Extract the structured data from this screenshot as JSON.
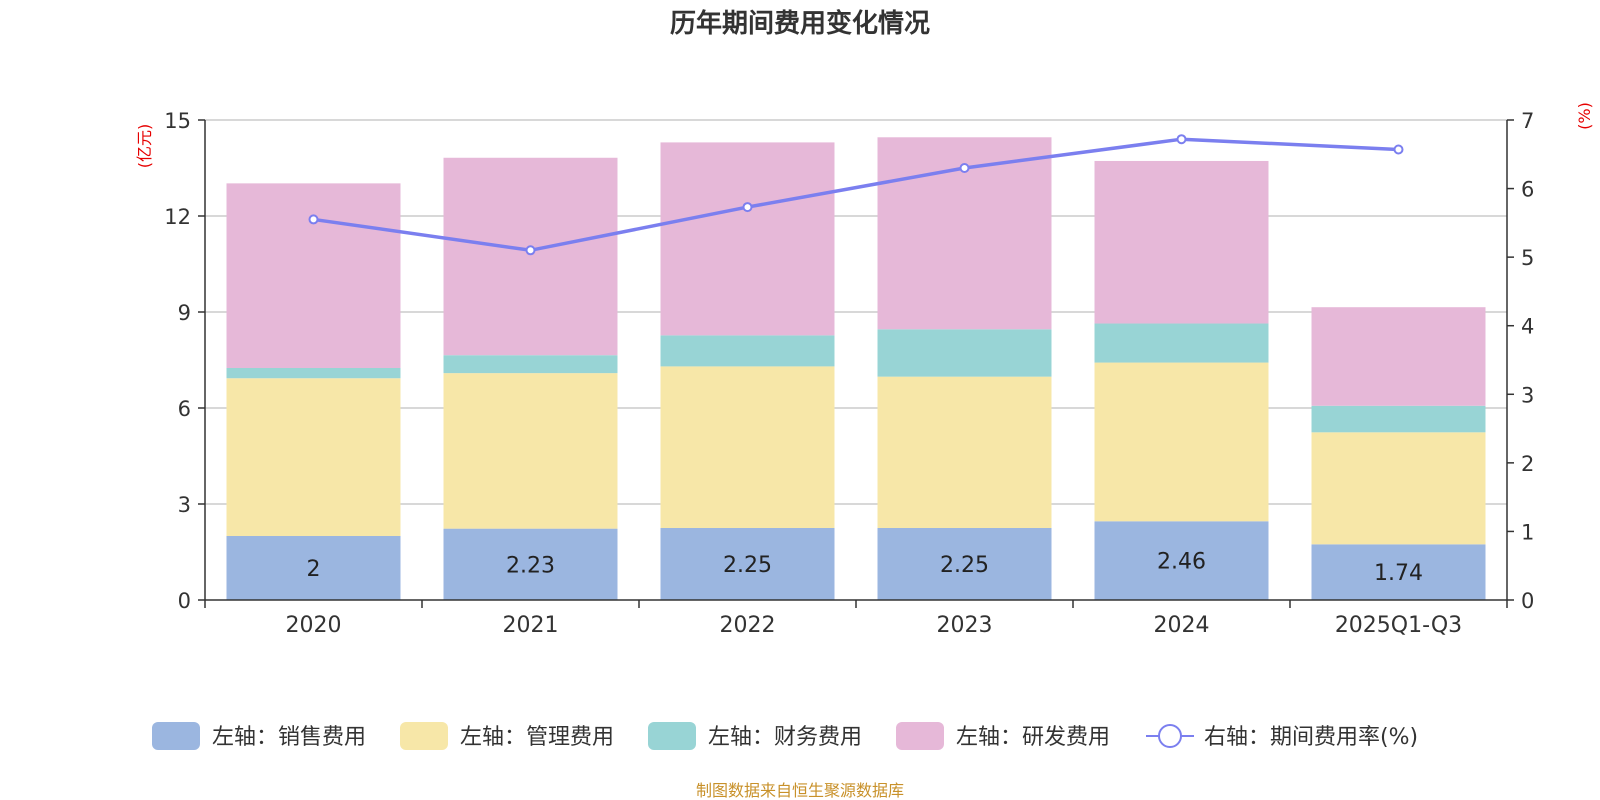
{
  "chart_data": {
    "type": "bar",
    "stacked": true,
    "title": "历年期间费用变化情况",
    "left_unit": "(亿元)",
    "right_unit": "(%)",
    "categories": [
      "2020",
      "2021",
      "2022",
      "2023",
      "2024",
      "2025Q1-Q3"
    ],
    "left_axis": {
      "min": 0,
      "max": 15,
      "ticks": [
        0,
        3,
        6,
        9,
        12,
        15
      ]
    },
    "right_axis": {
      "min": 0,
      "max": 7,
      "ticks": [
        0,
        1,
        2,
        3,
        4,
        5,
        6,
        7
      ]
    },
    "series": [
      {
        "name": "左轴：销售费用",
        "axis": "left",
        "color": "#9bb6e0",
        "values": [
          2.0,
          2.23,
          2.25,
          2.25,
          2.46,
          1.74
        ],
        "labels": [
          "2",
          "2.23",
          "2.25",
          "2.25",
          "2.46",
          "1.74"
        ]
      },
      {
        "name": "左轴：管理费用",
        "axis": "left",
        "color": "#f7e7a8",
        "values": [
          4.93,
          4.86,
          5.05,
          4.73,
          4.96,
          3.5
        ]
      },
      {
        "name": "左轴：财务费用",
        "axis": "left",
        "color": "#98d4d5",
        "values": [
          0.32,
          0.56,
          0.97,
          1.48,
          1.22,
          0.83
        ]
      },
      {
        "name": "左轴：研发费用",
        "axis": "left",
        "color": "#e6b8d8",
        "values": [
          5.77,
          6.17,
          6.03,
          6.0,
          5.08,
          3.08
        ]
      }
    ],
    "line": {
      "name": "右轴：期间费用率(%)",
      "axis": "right",
      "color": "#7b7fef",
      "values": [
        5.55,
        5.1,
        5.73,
        6.3,
        6.72,
        6.57
      ]
    },
    "legend_position": "bottom",
    "grid": true
  },
  "source": "制图数据来自恒生聚源数据库"
}
